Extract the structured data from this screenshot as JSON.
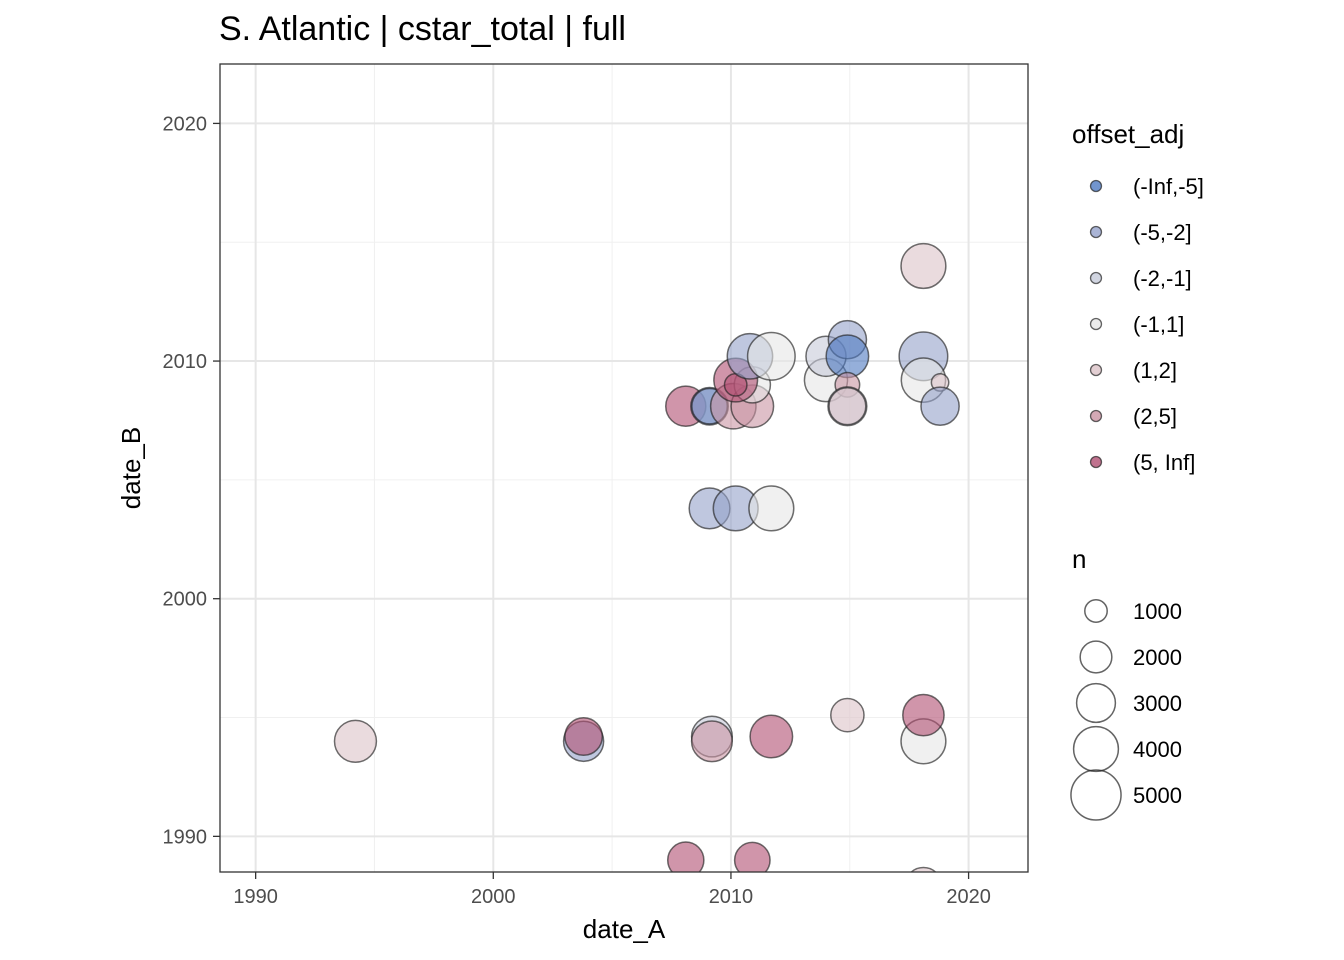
{
  "chart_data": {
    "type": "scatter",
    "title": "S. Atlantic | cstar_total | full",
    "xlabel": "date_A",
    "ylabel": "date_B",
    "xlim": [
      1988.5,
      2022.5
    ],
    "ylim": [
      1988.5,
      2022.5
    ],
    "x_ticks": [
      1990,
      2000,
      2010,
      2020
    ],
    "y_ticks": [
      1990,
      2000,
      2010,
      2020
    ],
    "x_tick_labels": [
      "1990",
      "2000",
      "2010",
      "2020"
    ],
    "y_tick_labels": [
      "1990",
      "2000",
      "2010",
      "2020"
    ],
    "grid": true,
    "legend_color": {
      "title": "offset_adj",
      "placement": "right",
      "entries": [
        {
          "label": "(-Inf,-5]",
          "color": "#4f7ac2"
        },
        {
          "label": "(-5,-2]",
          "color": "#95a1ca"
        },
        {
          "label": "(-2,-1]",
          "color": "#c6cad9"
        },
        {
          "label": "(-1,1]",
          "color": "#e6e6e6"
        },
        {
          "label": "(1,2]",
          "color": "#dcc3c8"
        },
        {
          "label": "(2,5]",
          "color": "#c994a3"
        },
        {
          "label": "(5, Inf]",
          "color": "#b04f72"
        }
      ]
    },
    "legend_size": {
      "title": "n",
      "placement": "right",
      "entries": [
        {
          "label": "1000",
          "value": 1000
        },
        {
          "label": "2000",
          "value": 2000
        },
        {
          "label": "3000",
          "value": 3000
        },
        {
          "label": "4000",
          "value": 4000
        },
        {
          "label": "5000",
          "value": 5000
        }
      ]
    },
    "points": [
      {
        "x": 1994.2,
        "y": 1994.0,
        "n": 3500,
        "group": "(1,2]"
      },
      {
        "x": 2003.8,
        "y": 1994.0,
        "n": 3200,
        "group": "(-5,-2]"
      },
      {
        "x": 2003.8,
        "y": 1994.2,
        "n": 2800,
        "group": "(5, Inf]"
      },
      {
        "x": 2009.2,
        "y": 1994.2,
        "n": 3300,
        "group": "(-2,-1]"
      },
      {
        "x": 2009.2,
        "y": 1994.0,
        "n": 3300,
        "group": "(2,5]"
      },
      {
        "x": 2011.7,
        "y": 1994.2,
        "n": 3600,
        "group": "(5, Inf]"
      },
      {
        "x": 2014.9,
        "y": 1995.1,
        "n": 2200,
        "group": "(1,2]"
      },
      {
        "x": 2018.1,
        "y": 1994.0,
        "n": 4000,
        "group": "(-1,1]"
      },
      {
        "x": 2018.1,
        "y": 1995.1,
        "n": 3400,
        "group": "(5, Inf]"
      },
      {
        "x": 2008.1,
        "y": 1989.0,
        "n": 2600,
        "group": "(5, Inf]"
      },
      {
        "x": 2010.9,
        "y": 1989.0,
        "n": 2500,
        "group": "(5, Inf]"
      },
      {
        "x": 2018.1,
        "y": 1987.9,
        "n": 2800,
        "group": "(1,2]"
      },
      {
        "x": 2009.1,
        "y": 2003.8,
        "n": 3300,
        "group": "(-5,-2]"
      },
      {
        "x": 2010.2,
        "y": 2003.8,
        "n": 4000,
        "group": "(-5,-2]"
      },
      {
        "x": 2011.7,
        "y": 2003.8,
        "n": 4000,
        "group": "(-1,1]"
      },
      {
        "x": 2008.1,
        "y": 2008.1,
        "n": 3200,
        "group": "(5, Inf]"
      },
      {
        "x": 2009.1,
        "y": 2008.1,
        "n": 2800,
        "group": "(-Inf,-5]"
      },
      {
        "x": 2009.1,
        "y": 2008.1,
        "n": 2500,
        "group": "(-5,-2]"
      },
      {
        "x": 2010.1,
        "y": 2008.1,
        "n": 4100,
        "group": "(2,5]"
      },
      {
        "x": 2010.9,
        "y": 2008.1,
        "n": 3600,
        "group": "(2,5]"
      },
      {
        "x": 2010.9,
        "y": 2009.0,
        "n": 2600,
        "group": "(-1,1]"
      },
      {
        "x": 2010.2,
        "y": 2009.2,
        "n": 3800,
        "group": "(5, Inf]"
      },
      {
        "x": 2010.2,
        "y": 2009.0,
        "n": 1000,
        "group": "(5, Inf]"
      },
      {
        "x": 2010.8,
        "y": 2010.2,
        "n": 4100,
        "group": "(-5,-2]"
      },
      {
        "x": 2011.7,
        "y": 2010.2,
        "n": 4500,
        "group": "(-1,1]"
      },
      {
        "x": 2014.0,
        "y": 2009.2,
        "n": 3700,
        "group": "(-1,1]"
      },
      {
        "x": 2014.0,
        "y": 2010.2,
        "n": 3200,
        "group": "(-2,-1]"
      },
      {
        "x": 2014.9,
        "y": 2010.9,
        "n": 2900,
        "group": "(-5,-2]"
      },
      {
        "x": 2014.9,
        "y": 2010.2,
        "n": 3600,
        "group": "(-Inf,-5]"
      },
      {
        "x": 2014.9,
        "y": 2009.0,
        "n": 1200,
        "group": "(2,5]"
      },
      {
        "x": 2014.9,
        "y": 2008.1,
        "n": 3000,
        "group": "(-2,-1]"
      },
      {
        "x": 2014.9,
        "y": 2008.1,
        "n": 2700,
        "group": "(1,2]"
      },
      {
        "x": 2018.1,
        "y": 2014.0,
        "n": 4000,
        "group": "(1,2]"
      },
      {
        "x": 2018.1,
        "y": 2010.2,
        "n": 4700,
        "group": "(-5,-2]"
      },
      {
        "x": 2018.1,
        "y": 2009.2,
        "n": 3900,
        "group": "(-1,1]"
      },
      {
        "x": 2018.8,
        "y": 2009.1,
        "n": 600,
        "group": "(1,2]"
      },
      {
        "x": 2018.8,
        "y": 2008.1,
        "n": 2900,
        "group": "(-5,-2]"
      }
    ]
  }
}
